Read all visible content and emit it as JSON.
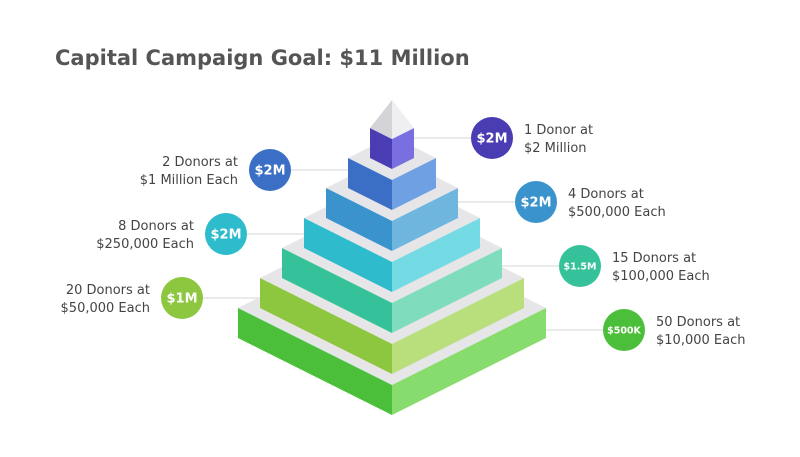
{
  "title": "Capital Campaign Goal: $11 Million",
  "tiers": [
    {
      "badge": "$2M",
      "lines": [
        "1 Donor at",
        "$2 Million"
      ],
      "colors": [
        "#4a3cb2",
        "#7a6fe0"
      ]
    },
    {
      "badge": "$2M",
      "lines": [
        "2 Donors at",
        "$1 Million Each"
      ],
      "colors": [
        "#3b6fc6",
        "#6fa0e4"
      ]
    },
    {
      "badge": "$2M",
      "lines": [
        "4 Donors at",
        "$500,000 Each"
      ],
      "colors": [
        "#3a93cc",
        "#6fb6de"
      ]
    },
    {
      "badge": "$2M",
      "lines": [
        "8 Donors at",
        "$250,000 Each"
      ],
      "colors": [
        "#2ebccc",
        "#74dbe4"
      ]
    },
    {
      "badge": "$1.5M",
      "lines": [
        "15 Donors at",
        "$100,000 Each"
      ],
      "colors": [
        "#35c29a",
        "#7fdcbd"
      ]
    },
    {
      "badge": "$1M",
      "lines": [
        "20 Donors at",
        "$50,000 Each"
      ],
      "colors": [
        "#8dc63f",
        "#b9df7c"
      ]
    },
    {
      "badge": "$500K",
      "lines": [
        "50 Donors at",
        "$10,000 Each"
      ],
      "colors": [
        "#4cbf3a",
        "#86dc6c"
      ]
    }
  ]
}
